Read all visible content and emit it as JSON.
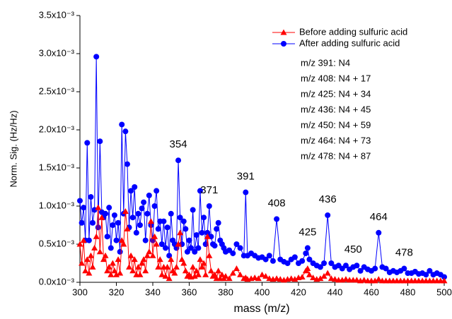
{
  "chart_data": {
    "type": "line",
    "xlabel": "mass (m/z)",
    "ylabel": "Norm. Sig. (Hz/Hz)",
    "x": [
      300,
      301,
      302,
      303,
      304,
      305,
      306,
      307,
      308,
      309,
      310,
      311,
      312,
      313,
      314,
      315,
      316,
      317,
      318,
      319,
      320,
      321,
      322,
      323,
      324,
      325,
      326,
      327,
      328,
      329,
      330,
      331,
      332,
      333,
      334,
      335,
      336,
      337,
      338,
      339,
      340,
      341,
      342,
      343,
      344,
      345,
      346,
      347,
      348,
      349,
      350,
      351,
      352,
      353,
      354,
      355,
      356,
      357,
      358,
      359,
      360,
      361,
      362,
      363,
      364,
      365,
      366,
      367,
      368,
      369,
      370,
      371,
      372,
      373,
      374,
      375,
      376,
      377,
      378,
      379,
      380,
      382,
      384,
      386,
      388,
      390,
      391,
      392,
      394,
      396,
      398,
      400,
      402,
      404,
      406,
      408,
      410,
      412,
      414,
      416,
      418,
      420,
      422,
      424,
      425,
      426,
      428,
      430,
      432,
      434,
      436,
      438,
      440,
      442,
      444,
      446,
      448,
      450,
      452,
      454,
      456,
      458,
      460,
      462,
      464,
      466,
      468,
      470,
      472,
      474,
      476,
      478,
      480,
      482,
      484,
      486,
      488,
      490,
      492,
      494,
      496,
      498,
      500
    ],
    "series": [
      {
        "name": "Before adding sulfuric acid",
        "color": "#ff0000",
        "marker": "triangle",
        "values": [
          0.0005,
          0.00025,
          0.00055,
          0.00015,
          0.0003,
          0.00012,
          0.00035,
          0.0002,
          0.00045,
          0.0006,
          0.00098,
          0.0004,
          0.00085,
          0.0003,
          0.00035,
          0.00015,
          0.0002,
          0.0001,
          0.00025,
          0.00015,
          0.0001,
          0.0003,
          0.00012,
          0.00055,
          0.0005,
          0.00093,
          0.0007,
          0.0002,
          0.00035,
          0.00015,
          0.0003,
          0.0001,
          0.0002,
          0.0001,
          0.00025,
          0.0003,
          0.00015,
          0.00035,
          0.0004,
          0.0008,
          0.00035,
          0.0006,
          0.0005,
          0.0002,
          0.0003,
          0.0001,
          0.0002,
          8e-05,
          0.0002,
          5e-05,
          0.0003,
          0.00015,
          0.00012,
          0.0002,
          0.0005,
          0.00065,
          0.0003,
          0.00025,
          0.00015,
          8e-05,
          0.0001,
          7e-05,
          0.0002,
          8e-05,
          0.00015,
          0.0001,
          0.0003,
          0.0002,
          0.00025,
          0.0001,
          0.0006,
          0.00035,
          0.00015,
          8e-05,
          0.0001,
          5e-05,
          0.00015,
          5e-05,
          0.0001,
          5e-05,
          8e-05,
          5e-05,
          0.00012,
          0.00018,
          0.0001,
          5e-05,
          6e-05,
          4e-05,
          5e-05,
          6e-05,
          5e-05,
          0.0001,
          8e-05,
          5e-05,
          4e-05,
          5e-05,
          4e-05,
          3e-05,
          4e-05,
          5e-05,
          4e-05,
          6e-05,
          7e-05,
          0.00015,
          0.00018,
          0.0001,
          6e-05,
          4e-05,
          5e-05,
          8e-05,
          0.00012,
          5e-05,
          4e-05,
          3e-05,
          3e-05,
          4e-05,
          3e-05,
          3e-05,
          3e-05,
          2e-05,
          3e-05,
          2e-05,
          2e-05,
          2e-05,
          4e-05,
          2e-05,
          2e-05,
          2e-05,
          2e-05,
          2e-05,
          2e-05,
          2e-05,
          2e-05,
          2e-05,
          2e-05,
          2e-05,
          2e-05,
          2e-05,
          2e-05,
          2e-05,
          2e-05,
          2e-05,
          2e-05
        ]
      },
      {
        "name": "After adding sulfuric acid",
        "color": "#0000ff",
        "marker": "circle",
        "values": [
          0.00107,
          0.00078,
          0.00098,
          0.00055,
          0.00183,
          0.00055,
          0.00112,
          0.00078,
          0.00095,
          0.00296,
          0.00072,
          0.00185,
          0.00092,
          0.00085,
          0.0009,
          0.0006,
          0.00098,
          0.00045,
          0.00075,
          0.00088,
          0.00055,
          0.00078,
          0.0004,
          0.00207,
          0.0009,
          0.00198,
          0.00155,
          0.00072,
          0.0012,
          0.00085,
          0.00125,
          0.00065,
          0.0009,
          0.00075,
          0.00097,
          0.00105,
          0.00055,
          0.0009,
          0.00114,
          0.00075,
          0.00055,
          0.001,
          0.0012,
          0.0007,
          0.0008,
          0.0005,
          0.0008,
          0.00045,
          0.00072,
          0.00035,
          0.0009,
          0.00055,
          0.0005,
          0.00045,
          0.0016,
          0.00085,
          0.0005,
          0.0008,
          0.0007,
          0.0004,
          0.00055,
          0.00045,
          0.00095,
          0.0004,
          0.00062,
          0.00045,
          0.0012,
          0.00065,
          0.00085,
          0.0005,
          0.00065,
          0.001,
          0.0006,
          0.0005,
          0.00048,
          0.0007,
          0.00078,
          0.00055,
          0.0005,
          0.00045,
          0.0004,
          0.00042,
          0.00038,
          0.0005,
          0.00045,
          0.00035,
          0.00118,
          0.00035,
          0.00038,
          0.00035,
          0.00032,
          0.00033,
          0.0003,
          0.00035,
          0.00028,
          0.00083,
          0.0003,
          0.00027,
          0.00025,
          0.0003,
          0.00033,
          0.00025,
          0.00028,
          0.00038,
          0.00045,
          0.0003,
          0.00025,
          0.00022,
          0.0002,
          0.00025,
          0.00088,
          0.00025,
          0.0002,
          0.00022,
          0.00018,
          0.00022,
          0.00017,
          0.0002,
          0.00022,
          0.00015,
          0.0002,
          0.00017,
          0.00015,
          0.00018,
          0.00065,
          0.0002,
          0.00018,
          0.00013,
          0.00015,
          0.00013,
          0.00015,
          0.00018,
          0.00012,
          0.00012,
          0.00014,
          0.00011,
          0.00012,
          0.0001,
          0.00015,
          0.0001,
          0.00012,
          0.0001,
          7e-05
        ]
      }
    ],
    "xlim": [
      300,
      500
    ],
    "xticks": [
      300,
      320,
      340,
      360,
      380,
      400,
      420,
      440,
      460,
      480,
      500
    ],
    "ylim": [
      0,
      0.0035
    ],
    "yticks": [
      {
        "value": 0,
        "label": "0.0x10⁻³"
      },
      {
        "value": 0.0005,
        "label": "0.5x10⁻³"
      },
      {
        "value": 0.001,
        "label": "1.0x10⁻³"
      },
      {
        "value": 0.0015,
        "label": "1.5x10⁻³"
      },
      {
        "value": 0.002,
        "label": "2.0x10⁻³"
      },
      {
        "value": 0.0025,
        "label": "2.5x10⁻³"
      },
      {
        "value": 0.003,
        "label": "3.0x10⁻³"
      },
      {
        "value": 0.0035,
        "label": "3.5x10⁻³"
      }
    ],
    "legend": "top-right",
    "notes": [
      "m/z 391: N4",
      "m/z 408: N4 + 17",
      "m/z 425: N4 + 34",
      "m/z 436: N4 + 45",
      "m/z 450: N4 + 59",
      "m/z 464: N4 + 73",
      "m/z 478: N4 + 87"
    ],
    "annotations": [
      "354",
      "371",
      "391",
      "408",
      "425",
      "436",
      "450",
      "464",
      "478"
    ]
  }
}
